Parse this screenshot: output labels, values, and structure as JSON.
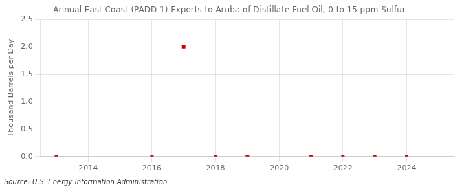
{
  "chart_data": {
    "type": "scatter",
    "title": "Annual East Coast (PADD 1) Exports to Aruba of Distillate Fuel Oil, 0 to 15 ppm Sulfur",
    "y_label": "Thousand Barrels per Day",
    "annotation": "Source: U.S. Energy Information Administration",
    "x": [
      2013,
      2016,
      2017,
      2018,
      2019,
      2021,
      2022,
      2023,
      2024
    ],
    "values": [
      0.0,
      0.0,
      2.0,
      0.0,
      0.0,
      0.0,
      0.0,
      0.0,
      0.0
    ],
    "color": "#cc0000",
    "marker": "square",
    "xlim": [
      2012.5,
      2025.5
    ],
    "xticks": [
      2014,
      2016,
      2018,
      2020,
      2022,
      2024
    ],
    "ylim": [
      0,
      2.5
    ],
    "yticks": [
      {
        "value": 0,
        "label": "0.0"
      },
      0.5,
      {
        "value": 1,
        "label": "1.0"
      },
      1.5,
      {
        "value": 2,
        "label": "2.0"
      },
      2.5
    ],
    "grid": true
  }
}
